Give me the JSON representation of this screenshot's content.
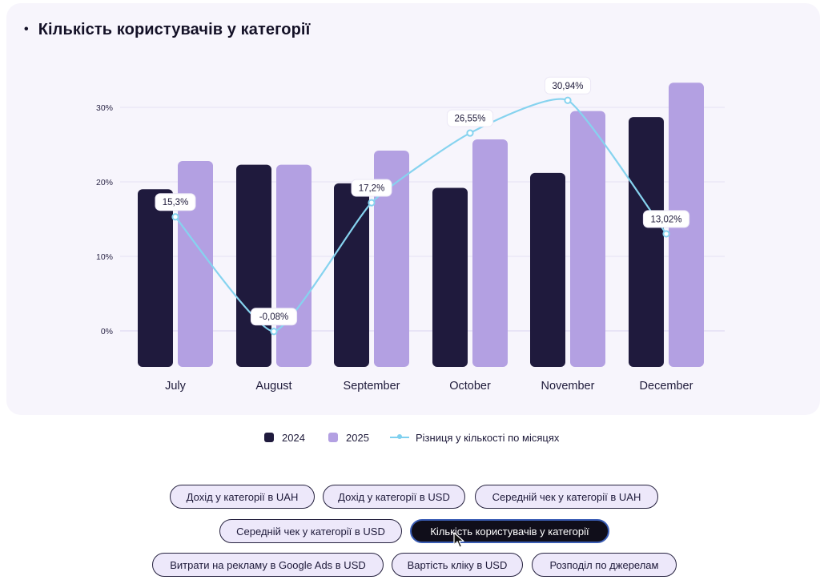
{
  "title": "Кількість користувачів у категорії",
  "legend": {
    "label_2024": "2024",
    "label_2025": "2025",
    "label_diff": "Різниця у кількості по місяцях"
  },
  "colors": {
    "bar_2024": "#1f1a3d",
    "bar_2025": "#b3a0e2",
    "line": "#86d3ef",
    "active_button": "#100e1a",
    "active_border": "#3a5db5"
  },
  "chart_data": {
    "type": "bar",
    "title": "Кількість користувачів у категорії",
    "categories": [
      "July",
      "August",
      "September",
      "October",
      "November",
      "December"
    ],
    "ylim": [
      -5,
      35
    ],
    "yticks": [
      0,
      10,
      20,
      30
    ],
    "ytick_labels": [
      "0%",
      "10%",
      "20%",
      "30%"
    ],
    "grid": true,
    "legend_position": "bottom",
    "series": [
      {
        "name": "2024",
        "type": "bar",
        "values": [
          19,
          22.3,
          19.8,
          19.2,
          21.2,
          28.7
        ]
      },
      {
        "name": "2025",
        "type": "bar",
        "values": [
          22.8,
          22.3,
          24.2,
          25.7,
          29.5,
          33.3
        ]
      },
      {
        "name": "Різниця у кількості по місяцях",
        "type": "line",
        "values": [
          15.3,
          -0.08,
          17.2,
          26.55,
          30.94,
          13.02
        ],
        "labels": [
          "15,3%",
          "-0,08%",
          "17,2%",
          "26,55%",
          "30,94%",
          "13,02%"
        ]
      }
    ]
  },
  "buttons": [
    {
      "label": "Дохід у категорії в UAH",
      "active": false
    },
    {
      "label": "Дохід у категорії в USD",
      "active": false
    },
    {
      "label": "Середній чек у категорії в UAH",
      "active": false
    },
    {
      "label": "Середній чек у категорії в USD",
      "active": false
    },
    {
      "label": "Кількість користувачів у категорії",
      "active": true
    },
    {
      "label": "Витрати на рекламу в Google Ads в USD",
      "active": false
    },
    {
      "label": "Вартість кліку в USD",
      "active": false
    },
    {
      "label": "Розподіл по джерелам",
      "active": false
    }
  ]
}
